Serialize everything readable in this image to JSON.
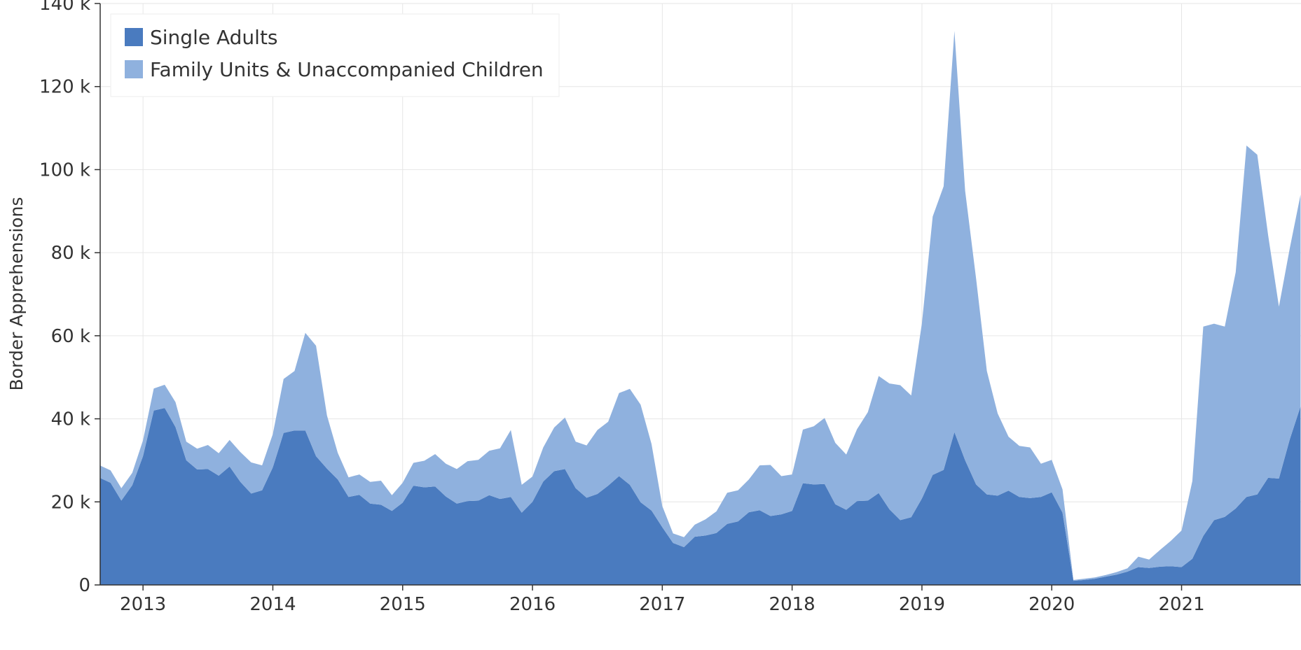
{
  "chart_data": {
    "type": "area",
    "stacked": true,
    "ylabel": "Border Apprehensions",
    "xlabel": "",
    "ylim": [
      0,
      140000
    ],
    "xlim": [
      2012.67,
      2021.92
    ],
    "grid": true,
    "legend_position": "top-left",
    "x_ticks": [
      2013,
      2014,
      2015,
      2016,
      2017,
      2018,
      2019,
      2020,
      2021
    ],
    "x_tick_labels": [
      "2013",
      "2014",
      "2015",
      "2016",
      "2017",
      "2018",
      "2019",
      "2020",
      "2021"
    ],
    "y_ticks": [
      0,
      20000,
      40000,
      60000,
      80000,
      100000,
      120000,
      140000
    ],
    "y_tick_labels": [
      "0",
      "20 k",
      "40 k",
      "60 k",
      "80 k",
      "100 k",
      "120 k",
      "140 k"
    ],
    "x": [
      2012.667,
      2012.75,
      2012.833,
      2012.917,
      2013.0,
      2013.083,
      2013.167,
      2013.25,
      2013.333,
      2013.417,
      2013.5,
      2013.583,
      2013.667,
      2013.75,
      2013.833,
      2013.917,
      2014.0,
      2014.083,
      2014.167,
      2014.25,
      2014.333,
      2014.417,
      2014.5,
      2014.583,
      2014.667,
      2014.75,
      2014.833,
      2014.917,
      2015.0,
      2015.083,
      2015.167,
      2015.25,
      2015.333,
      2015.417,
      2015.5,
      2015.583,
      2015.667,
      2015.75,
      2015.833,
      2015.917,
      2016.0,
      2016.083,
      2016.167,
      2016.25,
      2016.333,
      2016.417,
      2016.5,
      2016.583,
      2016.667,
      2016.75,
      2016.833,
      2016.917,
      2017.0,
      2017.083,
      2017.167,
      2017.25,
      2017.333,
      2017.417,
      2017.5,
      2017.583,
      2017.667,
      2017.75,
      2017.833,
      2017.917,
      2018.0,
      2018.083,
      2018.167,
      2018.25,
      2018.333,
      2018.417,
      2018.5,
      2018.583,
      2018.667,
      2018.75,
      2018.833,
      2018.917,
      2019.0,
      2019.083,
      2019.167,
      2019.25,
      2019.333,
      2019.417,
      2019.5,
      2019.583,
      2019.667,
      2019.75,
      2019.833,
      2019.917,
      2020.0,
      2020.083,
      2020.167,
      2020.25,
      2020.333,
      2020.417,
      2020.5,
      2020.583,
      2020.667,
      2020.75,
      2020.833,
      2020.917,
      2021.0,
      2021.083,
      2021.167,
      2021.25,
      2021.333,
      2021.417,
      2021.5,
      2021.583,
      2021.667,
      2021.75,
      2021.833,
      2021.917
    ],
    "series": [
      {
        "name": "Single Adults",
        "color": "#4a7bbf",
        "values": [
          25800,
          24600,
          20300,
          24000,
          31000,
          42000,
          42600,
          38000,
          30000,
          27800,
          27900,
          26300,
          28500,
          24800,
          22000,
          22800,
          28300,
          36600,
          37200,
          37200,
          31000,
          28000,
          25400,
          21200,
          21700,
          19600,
          19300,
          17800,
          19800,
          23900,
          23500,
          23700,
          21300,
          19600,
          20200,
          20300,
          21600,
          20700,
          21200,
          17400,
          20000,
          24900,
          27400,
          27900,
          23300,
          21000,
          21900,
          23900,
          26200,
          24100,
          19900,
          17900,
          13900,
          10100,
          9100,
          11600,
          11900,
          12500,
          14700,
          15300,
          17500,
          18000,
          16600,
          17000,
          17800,
          24500,
          24200,
          24300,
          19400,
          18100,
          20200,
          20300,
          22100,
          18200,
          15600,
          16300,
          20800,
          26500,
          27700,
          36800,
          30000,
          24200,
          21800,
          21500,
          22700,
          21200,
          20900,
          21200,
          22300,
          17400,
          1000,
          1200,
          1500,
          2000,
          2500,
          3200,
          4300,
          4100,
          4400,
          4500,
          4300,
          6300,
          11800,
          15600,
          16400,
          18400,
          21200,
          21800,
          25800,
          25600,
          35000,
          43000
        ]
      },
      {
        "name": "Family Units & Unaccompanied Children",
        "color": "#8fb1de",
        "values": [
          3000,
          3000,
          3000,
          3000,
          3800,
          5300,
          5600,
          6000,
          4500,
          5000,
          5800,
          5400,
          6400,
          7200,
          7500,
          6000,
          8000,
          13000,
          14300,
          23500,
          26600,
          12800,
          6400,
          4700,
          4900,
          5200,
          5800,
          3800,
          4800,
          5500,
          6400,
          7800,
          7900,
          8300,
          9600,
          9800,
          10700,
          12200,
          16100,
          6700,
          6100,
          8200,
          10500,
          12400,
          11200,
          12600,
          15400,
          15400,
          20000,
          23100,
          23500,
          16000,
          5100,
          2300,
          2400,
          2900,
          3900,
          5200,
          7500,
          7500,
          7900,
          10800,
          12300,
          9200,
          8800,
          12900,
          14000,
          15900,
          14800,
          13300,
          17300,
          21300,
          28200,
          30300,
          32500,
          29300,
          42200,
          62200,
          68300,
          96600,
          64900,
          49600,
          29700,
          19800,
          13000,
          12300,
          12200,
          8000,
          7800,
          5600,
          200,
          300,
          300,
          400,
          600,
          800,
          2500,
          2000,
          4000,
          6100,
          8800,
          18700,
          50400,
          47300,
          45800,
          56900,
          84600,
          81800,
          58400,
          41400,
          46000,
          51000
        ]
      }
    ]
  }
}
